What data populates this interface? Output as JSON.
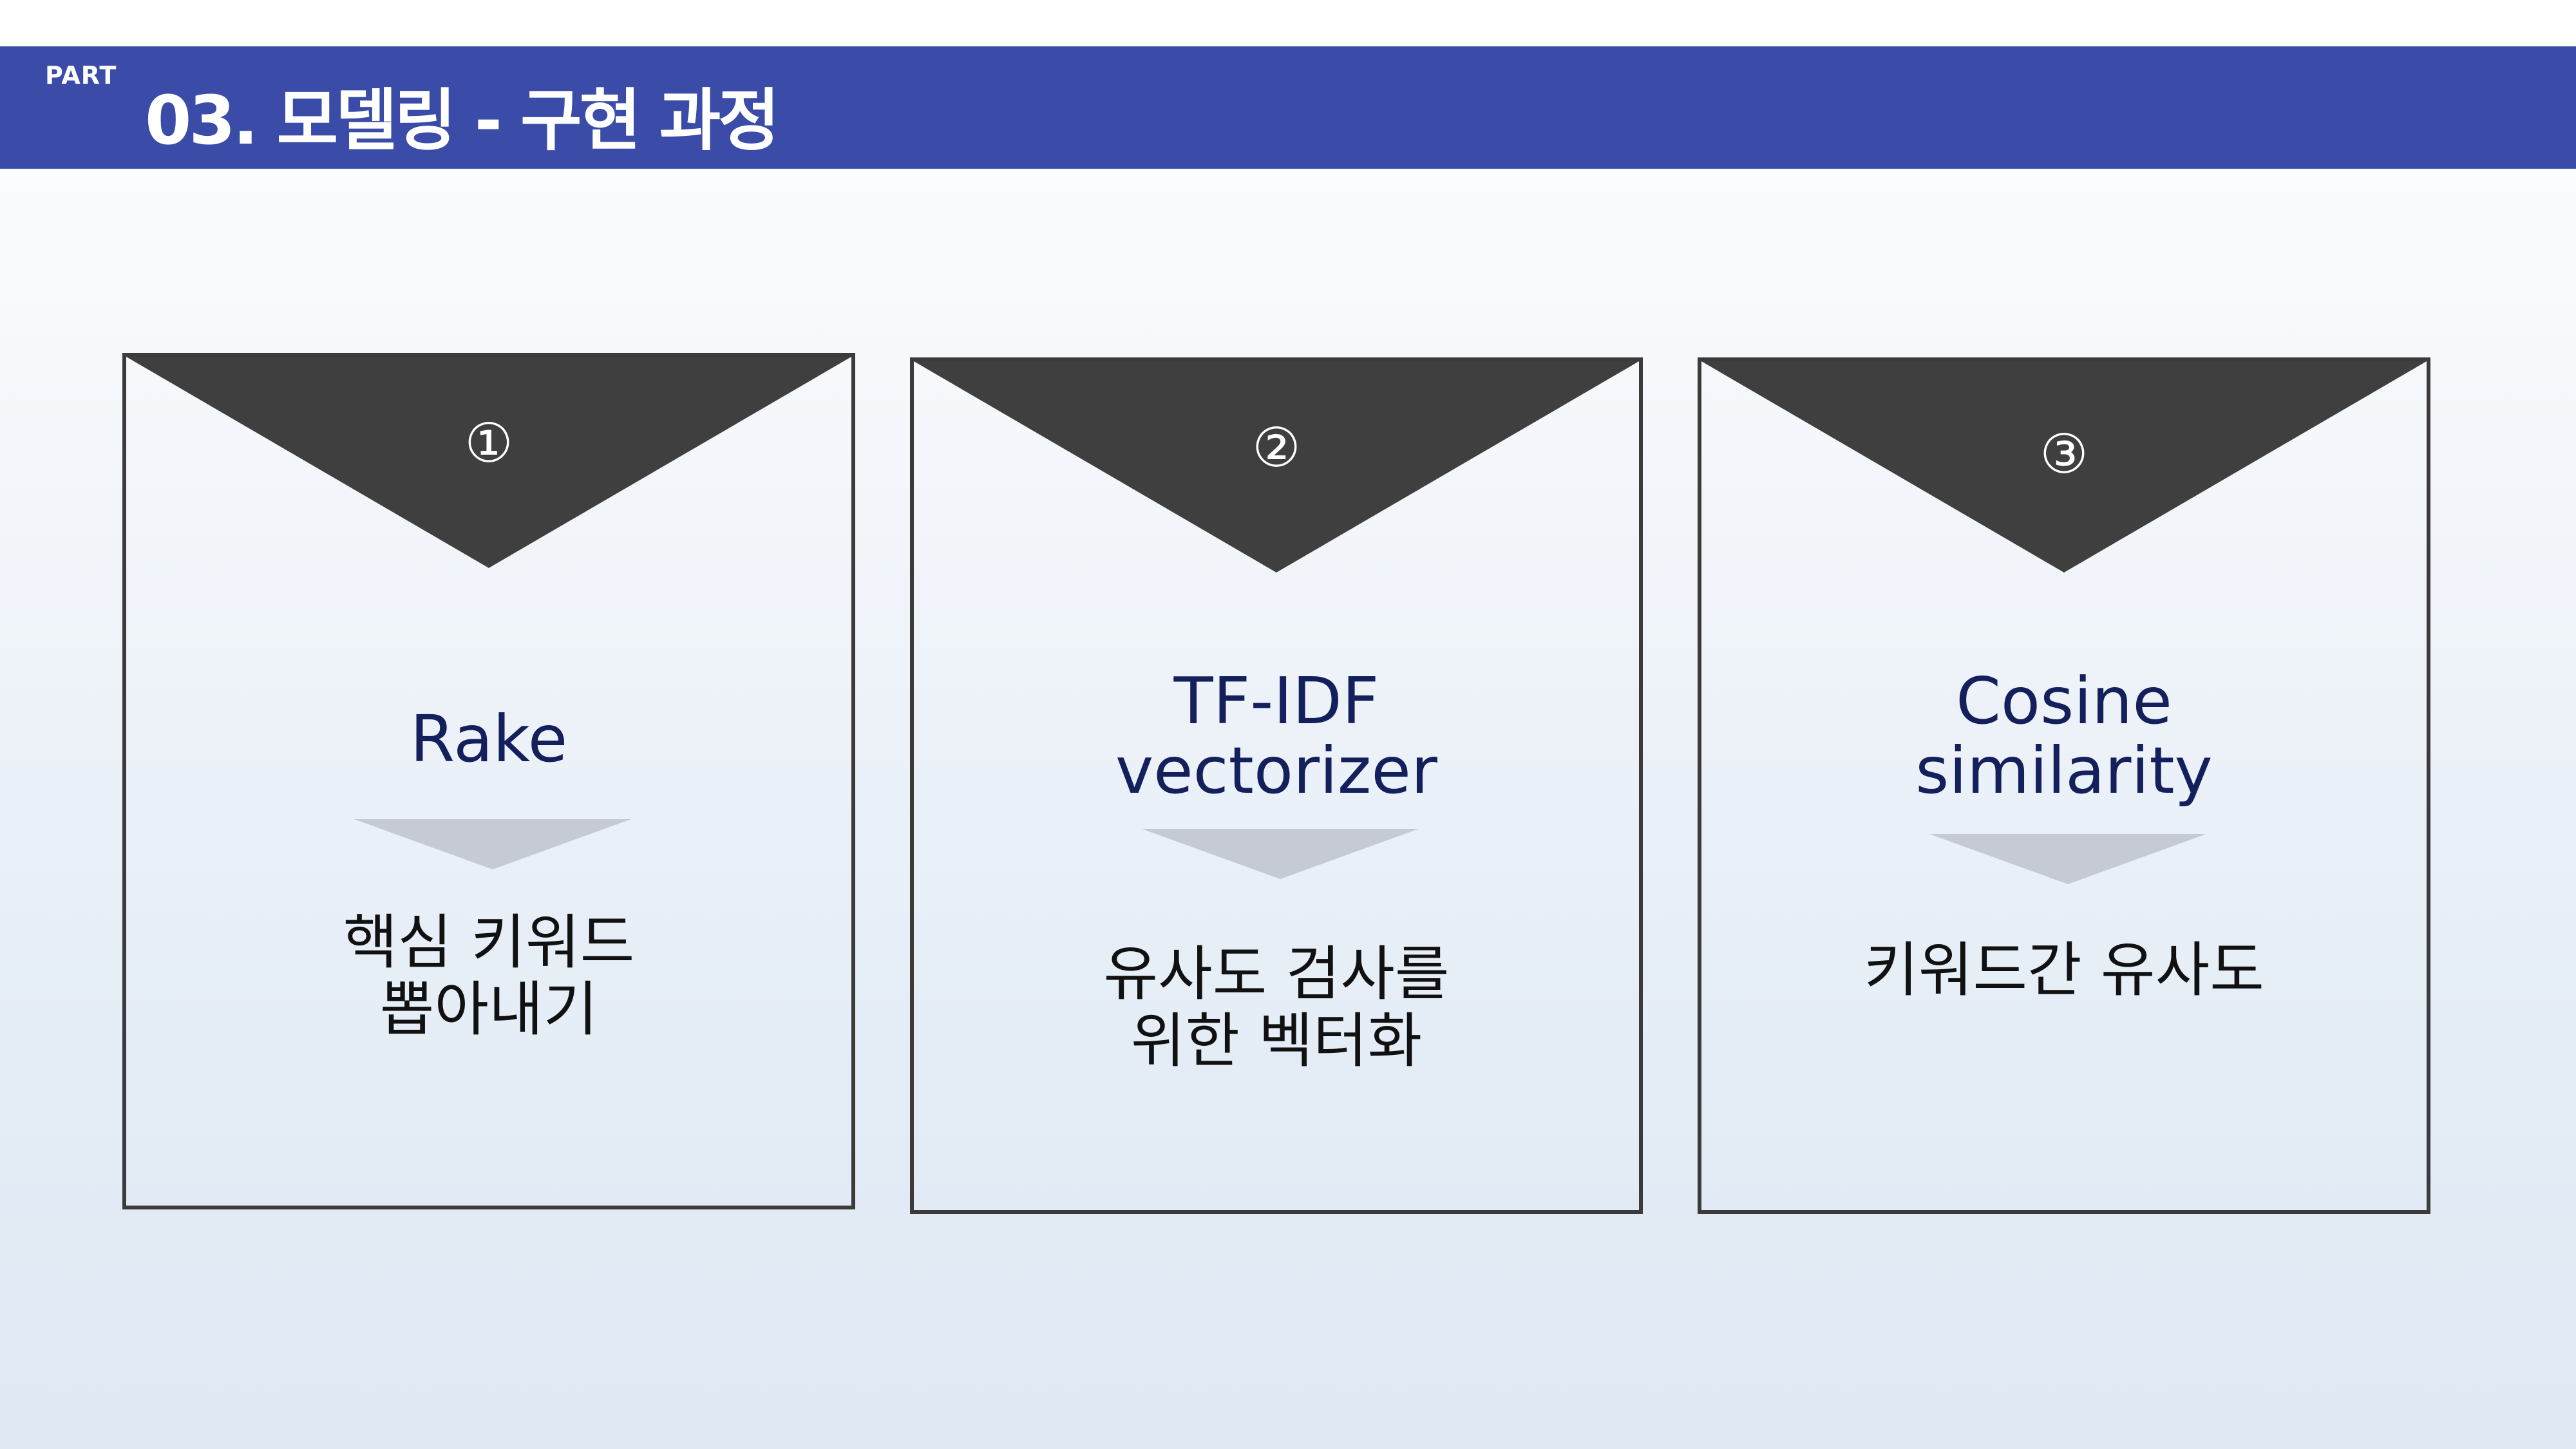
{
  "header": {
    "part_label": "PART",
    "title": "03. 모델링 - 구현 과정"
  },
  "cards": [
    {
      "number": "①",
      "method_lines": [
        "Rake"
      ],
      "desc_lines": [
        "핵심 키워드",
        "뽑아내기"
      ]
    },
    {
      "number": "②",
      "method_lines": [
        "TF-IDF",
        "vectorizer"
      ],
      "desc_lines": [
        "유사도 검사를",
        "위한 벡터화"
      ]
    },
    {
      "number": "③",
      "method_lines": [
        "Cosine",
        "similarity"
      ],
      "desc_lines": [
        "키워드간 유사도"
      ]
    }
  ],
  "colors": {
    "header_bg": "#3a4ca8",
    "notch": "#3f3f3f",
    "method_text": "#13205c",
    "arrow": "#c6cad2"
  }
}
